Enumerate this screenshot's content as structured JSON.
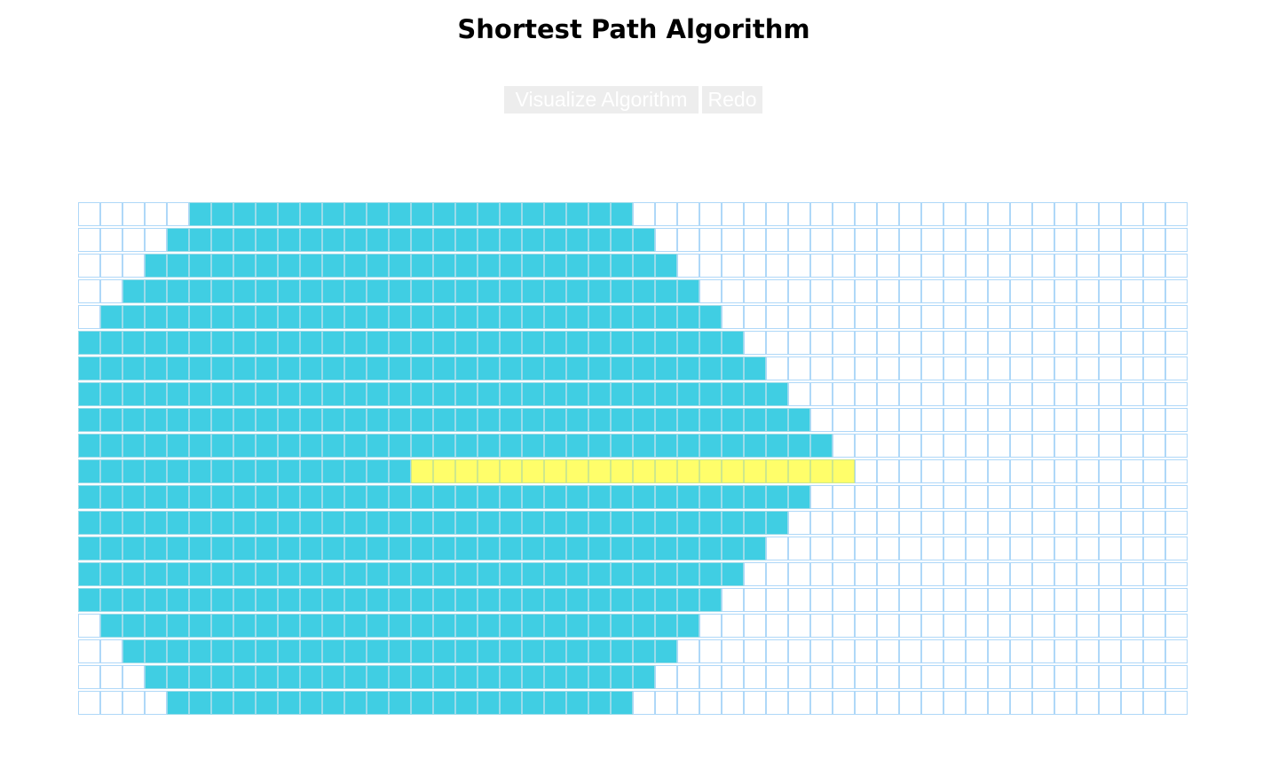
{
  "header": {
    "title": "Shortest Path Algorithm"
  },
  "controls": {
    "visualize_label": "Visualize Algorithm",
    "redo_label": "Redo"
  },
  "grid": {
    "rows": 20,
    "cols": 50,
    "visited_ranges": [
      [
        5,
        25
      ],
      [
        4,
        26
      ],
      [
        3,
        27
      ],
      [
        2,
        28
      ],
      [
        1,
        29
      ],
      [
        0,
        30
      ],
      [
        0,
        31
      ],
      [
        0,
        32
      ],
      [
        0,
        33
      ],
      [
        0,
        34
      ],
      [
        0,
        35
      ],
      [
        0,
        33
      ],
      [
        0,
        32
      ],
      [
        0,
        31
      ],
      [
        0,
        30
      ],
      [
        0,
        29
      ],
      [
        1,
        28
      ],
      [
        2,
        27
      ],
      [
        3,
        26
      ],
      [
        4,
        25
      ]
    ],
    "path": {
      "row": 10,
      "from_col": 15,
      "to_col": 35
    }
  },
  "colors": {
    "visited": "#40cee3",
    "path": "#fffe6a",
    "unvisited": "#ffffff",
    "cell_border": "#afd8f8",
    "button_bg": "#ededed",
    "button_text": "#ffffff"
  }
}
